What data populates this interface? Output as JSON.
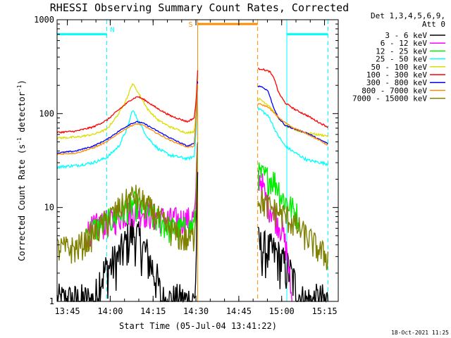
{
  "chart_data": {
    "type": "line",
    "title": "RHESSI Observing Summary Count Rates, Corrected",
    "xlabel": "Start Time (05-Jul-04 13:41:22)",
    "ylabel": "Corrected Count Rate (s⁻¹ detector⁻¹)",
    "ylabel_main": "Corrected Count Rate (s",
    "ylabel_sup1": "-1",
    "ylabel_mid": " detector",
    "ylabel_sup2": "-1",
    "ylabel_end": ")",
    "yscale": "log",
    "xlim": [
      13.69,
      15.33
    ],
    "ylim": [
      1,
      1000
    ],
    "x_ticks": [
      {
        "v": 13.75,
        "label": "13:45"
      },
      {
        "v": 14.0,
        "label": "14:00"
      },
      {
        "v": 14.25,
        "label": "14:15"
      },
      {
        "v": 14.5,
        "label": "14:30"
      },
      {
        "v": 14.75,
        "label": "14:45"
      },
      {
        "v": 15.0,
        "label": "15:00"
      },
      {
        "v": 15.25,
        "label": "15:15"
      }
    ],
    "y_ticks": [
      {
        "v": 1,
        "label": "1"
      },
      {
        "v": 10,
        "label": "10"
      },
      {
        "v": 100,
        "label": "100"
      },
      {
        "v": 1000,
        "label": "1000"
      }
    ],
    "legend_header": [
      "Det 1,3,4,5,6,9,",
      "Att 0"
    ],
    "legend_position": "right",
    "footer_date": "18-Oct-2021 11:25",
    "gap": [
      14.51,
      14.86
    ],
    "night_bar_y": 700,
    "sun_bar_y": 900,
    "night_label": "N",
    "saa_label": "S",
    "night_intervals": [
      [
        13.69,
        13.98
      ],
      [
        15.03,
        15.27
      ]
    ],
    "night_lines": [
      13.69,
      13.98,
      15.03,
      15.27
    ],
    "night_color": "#00ffff",
    "saa_interval": [
      14.51,
      14.86
    ],
    "saa_color": "#ff8c00",
    "series": [
      {
        "name": "3 - 6 keV",
        "color": "#000000",
        "points": [
          [
            13.69,
            1
          ],
          [
            13.91,
            1
          ],
          [
            13.94,
            1.8
          ],
          [
            13.98,
            2.2
          ],
          [
            14.05,
            3
          ],
          [
            14.1,
            4.5
          ],
          [
            14.13,
            5.6
          ],
          [
            14.17,
            4.5
          ],
          [
            14.22,
            3
          ],
          [
            14.27,
            1.8
          ],
          [
            14.3,
            1
          ],
          [
            14.49,
            1
          ],
          [
            14.5,
            2
          ],
          [
            14.51,
            30
          ],
          [
            14.88,
            3.8
          ],
          [
            14.93,
            3.5
          ],
          [
            14.97,
            3.2
          ],
          [
            15.01,
            2.5
          ],
          [
            15.04,
            2.2
          ],
          [
            15.08,
            1.5
          ],
          [
            15.12,
            1
          ],
          [
            15.27,
            1
          ]
        ]
      },
      {
        "name": "6 - 12 keV",
        "color": "#ff00ff",
        "points": [
          [
            13.86,
            5.5
          ],
          [
            13.92,
            6.5
          ],
          [
            13.98,
            7
          ],
          [
            14.05,
            8
          ],
          [
            14.1,
            9
          ],
          [
            14.15,
            9.5
          ],
          [
            14.2,
            9
          ],
          [
            14.27,
            8
          ],
          [
            14.35,
            7.5
          ],
          [
            14.45,
            7.5
          ],
          [
            14.49,
            8
          ],
          [
            14.5,
            12
          ],
          [
            14.51,
            80
          ],
          [
            14.88,
            20
          ],
          [
            14.91,
            12
          ],
          [
            14.95,
            9
          ],
          [
            15.0,
            6
          ],
          [
            15.03,
            3.5
          ],
          [
            15.06,
            1
          ]
        ]
      },
      {
        "name": "12 - 25 keV",
        "color": "#00ee00",
        "points": [
          [
            13.86,
            5.5
          ],
          [
            13.95,
            6.5
          ],
          [
            14.03,
            8
          ],
          [
            14.1,
            10
          ],
          [
            14.14,
            11
          ],
          [
            14.18,
            10
          ],
          [
            14.25,
            8
          ],
          [
            14.3,
            7
          ],
          [
            14.35,
            6
          ],
          [
            14.45,
            6
          ],
          [
            14.49,
            6.5
          ],
          [
            14.5,
            10
          ],
          [
            14.51,
            60
          ],
          [
            14.88,
            22
          ],
          [
            14.95,
            20
          ],
          [
            14.98,
            17
          ],
          [
            15.0,
            13
          ],
          [
            15.04,
            11
          ],
          [
            15.1,
            8
          ]
        ]
      },
      {
        "name": "25 - 50 keV",
        "color": "#00ffff",
        "points": [
          [
            13.69,
            27
          ],
          [
            13.8,
            28
          ],
          [
            13.9,
            30
          ],
          [
            13.98,
            34
          ],
          [
            14.05,
            45
          ],
          [
            14.1,
            70
          ],
          [
            14.13,
            110
          ],
          [
            14.17,
            80
          ],
          [
            14.22,
            55
          ],
          [
            14.28,
            42
          ],
          [
            14.35,
            36
          ],
          [
            14.45,
            33
          ],
          [
            14.49,
            35
          ],
          [
            14.5,
            60
          ],
          [
            14.51,
            180
          ],
          [
            14.88,
            110
          ],
          [
            14.93,
            90
          ],
          [
            14.97,
            62
          ],
          [
            15.02,
            45
          ],
          [
            15.08,
            38
          ],
          [
            15.15,
            32
          ],
          [
            15.23,
            30
          ],
          [
            15.27,
            29
          ]
        ]
      },
      {
        "name": "50 - 100 keV",
        "color": "#dddd00",
        "points": [
          [
            13.69,
            55
          ],
          [
            13.8,
            56
          ],
          [
            13.9,
            60
          ],
          [
            13.98,
            68
          ],
          [
            14.05,
            100
          ],
          [
            14.1,
            150
          ],
          [
            14.13,
            210
          ],
          [
            14.17,
            160
          ],
          [
            14.22,
            110
          ],
          [
            14.28,
            85
          ],
          [
            14.35,
            72
          ],
          [
            14.45,
            62
          ],
          [
            14.49,
            65
          ],
          [
            14.5,
            100
          ],
          [
            14.51,
            250
          ],
          [
            14.88,
            140
          ],
          [
            14.93,
            120
          ],
          [
            14.97,
            95
          ],
          [
            15.02,
            75
          ],
          [
            15.1,
            65
          ],
          [
            15.2,
            60
          ],
          [
            15.27,
            58
          ]
        ]
      },
      {
        "name": "100 - 300 keV",
        "color": "#ff0000",
        "points": [
          [
            13.69,
            63
          ],
          [
            13.8,
            65
          ],
          [
            13.9,
            72
          ],
          [
            13.98,
            85
          ],
          [
            14.05,
            110
          ],
          [
            14.12,
            140
          ],
          [
            14.16,
            152
          ],
          [
            14.2,
            140
          ],
          [
            14.27,
            115
          ],
          [
            14.35,
            95
          ],
          [
            14.45,
            82
          ],
          [
            14.49,
            90
          ],
          [
            14.5,
            130
          ],
          [
            14.51,
            290
          ],
          [
            14.88,
            300
          ],
          [
            14.93,
            280
          ],
          [
            14.96,
            230
          ],
          [
            14.98,
            170
          ],
          [
            15.02,
            130
          ],
          [
            15.08,
            110
          ],
          [
            15.15,
            95
          ],
          [
            15.22,
            80
          ],
          [
            15.27,
            72
          ]
        ]
      },
      {
        "name": "300 - 800 keV",
        "color": "#0000ff",
        "points": [
          [
            13.69,
            38
          ],
          [
            13.8,
            40
          ],
          [
            13.9,
            45
          ],
          [
            13.98,
            53
          ],
          [
            14.05,
            65
          ],
          [
            14.12,
            78
          ],
          [
            14.16,
            82
          ],
          [
            14.2,
            78
          ],
          [
            14.27,
            66
          ],
          [
            14.35,
            55
          ],
          [
            14.45,
            45
          ],
          [
            14.49,
            48
          ],
          [
            14.5,
            80
          ],
          [
            14.51,
            220
          ],
          [
            14.88,
            195
          ],
          [
            14.92,
            175
          ],
          [
            14.95,
            120
          ],
          [
            14.98,
            90
          ],
          [
            15.02,
            75
          ],
          [
            15.08,
            68
          ],
          [
            15.15,
            62
          ],
          [
            15.22,
            53
          ],
          [
            15.27,
            48
          ]
        ]
      },
      {
        "name": "800 - 7000 keV",
        "color": "#ff8c00",
        "points": [
          [
            13.69,
            37
          ],
          [
            13.8,
            38
          ],
          [
            13.9,
            43
          ],
          [
            13.98,
            50
          ],
          [
            14.05,
            62
          ],
          [
            14.12,
            74
          ],
          [
            14.16,
            78
          ],
          [
            14.2,
            74
          ],
          [
            14.27,
            62
          ],
          [
            14.35,
            52
          ],
          [
            14.45,
            44
          ],
          [
            14.49,
            45
          ],
          [
            14.5,
            75
          ],
          [
            14.51,
            210
          ],
          [
            14.88,
            125
          ],
          [
            14.92,
            118
          ],
          [
            14.96,
            100
          ],
          [
            15.0,
            85
          ],
          [
            15.06,
            72
          ],
          [
            15.14,
            62
          ],
          [
            15.22,
            52
          ],
          [
            15.27,
            46
          ]
        ]
      },
      {
        "name": "7000 - 15000 keV",
        "color": "#808000",
        "points": [
          [
            13.69,
            3.7
          ],
          [
            13.8,
            3.7
          ],
          [
            13.86,
            4.5
          ],
          [
            13.95,
            6.5
          ],
          [
            14.03,
            9
          ],
          [
            14.1,
            12
          ],
          [
            14.14,
            13.5
          ],
          [
            14.18,
            12
          ],
          [
            14.25,
            9
          ],
          [
            14.32,
            6.5
          ],
          [
            14.4,
            5
          ],
          [
            14.45,
            4.5
          ],
          [
            14.49,
            5
          ],
          [
            14.5,
            12
          ],
          [
            14.51,
            60
          ],
          [
            14.88,
            12
          ],
          [
            14.93,
            10
          ],
          [
            14.98,
            9
          ],
          [
            15.03,
            8
          ],
          [
            15.1,
            6
          ],
          [
            15.17,
            4.5
          ],
          [
            15.22,
            3.5
          ],
          [
            15.27,
            3
          ]
        ]
      }
    ]
  }
}
